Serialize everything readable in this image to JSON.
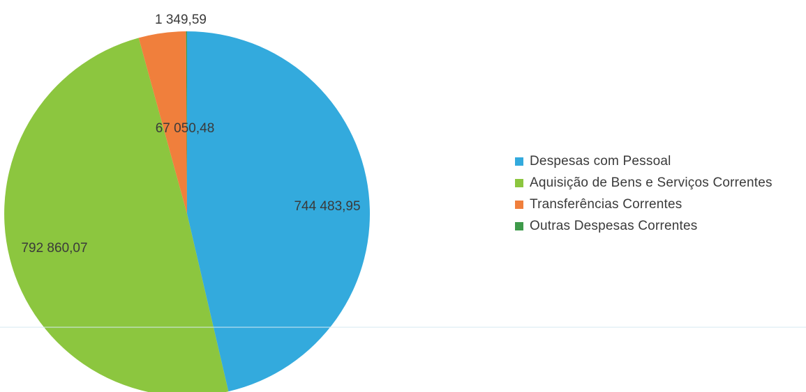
{
  "chart_data": {
    "type": "pie",
    "title": "",
    "slices": [
      {
        "label": "Despesas com Pessoal",
        "value": 744483.95,
        "display": "744 483,95",
        "color": "#33aadd"
      },
      {
        "label": "Aquisição de Bens e Serviços Correntes",
        "value": 792860.07,
        "display": "792 860,07",
        "color": "#8cc63f"
      },
      {
        "label": "Transferências Correntes",
        "value": 67050.48,
        "display": "67 050,48",
        "color": "#f07f3c"
      },
      {
        "label": "Outras Despesas Correntes",
        "value": 1349.59,
        "display": "1 349,59",
        "color": "#3e9a4a"
      }
    ],
    "start_angle_deg": 0,
    "direction": "clockwise",
    "legend": {
      "position": "right",
      "items": [
        {
          "label": "Despesas com Pessoal",
          "color": "#33aadd"
        },
        {
          "label": "Aquisição de Bens e Serviços Correntes",
          "color": "#8cc63f"
        },
        {
          "label": "Transferências Correntes",
          "color": "#f07f3c"
        },
        {
          "label": "Outras Despesas Correntes",
          "color": "#3e9a4a"
        }
      ]
    }
  }
}
